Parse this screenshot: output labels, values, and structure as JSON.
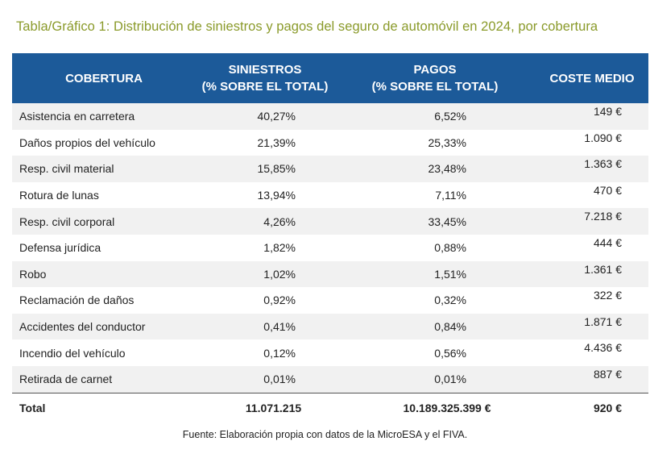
{
  "title": "Tabla/Gráfico 1: Distribución de siniestros y pagos del seguro de automóvil en 2024, por cobertura",
  "columns": {
    "cobertura": "COBERTURA",
    "siniestros_line1": "SINIESTROS",
    "siniestros_line2": "(% SOBRE EL TOTAL)",
    "pagos_line1": "PAGOS",
    "pagos_line2": "(% SOBRE EL TOTAL)",
    "coste": "COSTE MEDIO"
  },
  "rows": [
    {
      "cobertura": "Asistencia en carretera",
      "siniestros": "40,27%",
      "pagos": "6,52%",
      "coste": "149 €"
    },
    {
      "cobertura": "Daños propios del vehículo",
      "siniestros": "21,39%",
      "pagos": "25,33%",
      "coste": "1.090 €"
    },
    {
      "cobertura": "Resp. civil material",
      "siniestros": "15,85%",
      "pagos": "23,48%",
      "coste": "1.363 €"
    },
    {
      "cobertura": "Rotura de lunas",
      "siniestros": "13,94%",
      "pagos": "7,11%",
      "coste": "470 €"
    },
    {
      "cobertura": "Resp. civil corporal",
      "siniestros": "4,26%",
      "pagos": "33,45%",
      "coste": "7.218 €"
    },
    {
      "cobertura": "Defensa jurídica",
      "siniestros": "1,82%",
      "pagos": "0,88%",
      "coste": "444 €"
    },
    {
      "cobertura": "Robo",
      "siniestros": "1,02%",
      "pagos": "1,51%",
      "coste": "1.361 €"
    },
    {
      "cobertura": "Reclamación de daños",
      "siniestros": "0,92%",
      "pagos": "0,32%",
      "coste": "322 €"
    },
    {
      "cobertura": "Accidentes del conductor",
      "siniestros": "0,41%",
      "pagos": "0,84%",
      "coste": "1.871 €"
    },
    {
      "cobertura": "Incendio del vehículo",
      "siniestros": "0,12%",
      "pagos": "0,56%",
      "coste": "4.436 €"
    },
    {
      "cobertura": "Retirada de carnet",
      "siniestros": "0,01%",
      "pagos": "0,01%",
      "coste": "887 €"
    }
  ],
  "total": {
    "label": "Total",
    "siniestros": "11.071.215",
    "pagos": "10.189.325.399 €",
    "coste": "920 €"
  },
  "source": "Fuente: Elaboración propia con datos de la MicroESA y el FIVA."
}
